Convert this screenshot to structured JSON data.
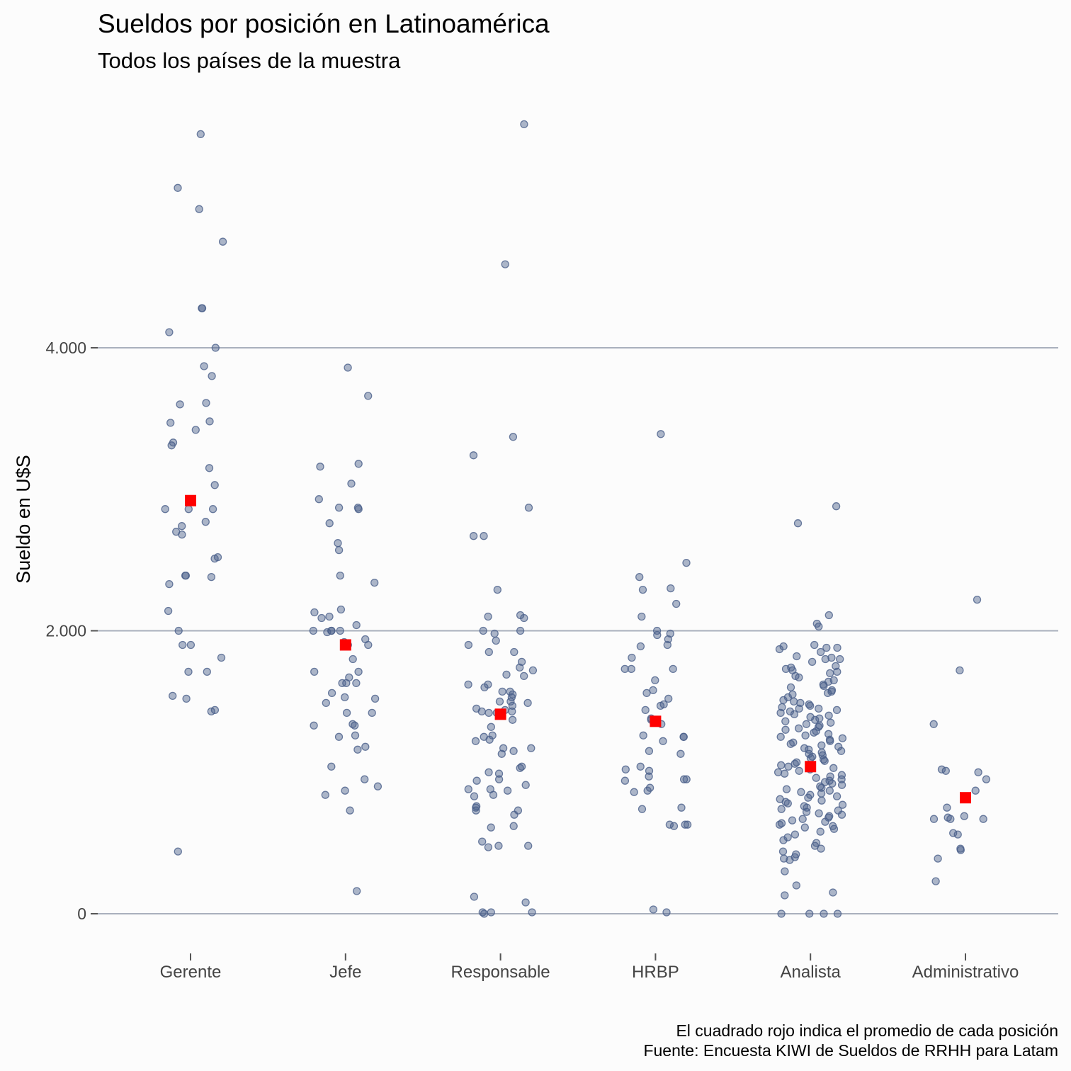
{
  "chart_data": {
    "type": "scatter",
    "title": "Sueldos por posición en Latinoamérica",
    "subtitle": "Todos los países de la muestra",
    "ylabel": "Sueldo en U$S",
    "xlabel": "",
    "ylim": [
      -200,
      5600
    ],
    "yticks": [
      0,
      2000,
      4000
    ],
    "ytick_labels": [
      "0",
      "2.000",
      "4.000"
    ],
    "grid": true,
    "categories": [
      "Gerente",
      "Jefe",
      "Responsable",
      "HRBP",
      "Analista",
      "Administrativo"
    ],
    "point_color": "#4a5f8a",
    "mean_color": "#ff0000",
    "caption": [
      "El cuadrado rojo indica el promedio de cada posición",
      "Fuente: Encuesta KIWI de Sueldos de RRHH para Latam"
    ],
    "means": [
      2920,
      1900,
      1410,
      1360,
      1040,
      820
    ],
    "series": [
      {
        "category": "Gerente",
        "values": [
          5510,
          5130,
          4980,
          4750,
          4280,
          4280,
          4110,
          4000,
          3870,
          3800,
          3610,
          3600,
          3480,
          3470,
          3420,
          3330,
          3310,
          3150,
          3030,
          2860,
          2860,
          2860,
          2770,
          2740,
          2700,
          2680,
          2520,
          2510,
          2390,
          2390,
          2380,
          2330,
          2140,
          2000,
          1900,
          1900,
          1810,
          1710,
          1710,
          1540,
          1520,
          1440,
          1430,
          440
        ]
      },
      {
        "category": "Jefe",
        "values": [
          3860,
          3660,
          3180,
          3160,
          3040,
          2930,
          2870,
          2870,
          2860,
          2760,
          2620,
          2570,
          2390,
          2340,
          2150,
          2130,
          2100,
          2090,
          2040,
          2000,
          2000,
          2000,
          2000,
          1990,
          1940,
          1920,
          1900,
          1900,
          1800,
          1710,
          1710,
          1670,
          1630,
          1630,
          1630,
          1560,
          1530,
          1520,
          1490,
          1420,
          1420,
          1340,
          1330,
          1330,
          1260,
          1250,
          1180,
          1160,
          1040,
          950,
          900,
          870,
          840,
          730,
          160
        ]
      },
      {
        "category": "Responsable",
        "values": [
          5580,
          4590,
          3370,
          3240,
          2870,
          2670,
          2670,
          2290,
          2110,
          2100,
          2090,
          2000,
          2000,
          1980,
          1930,
          1900,
          1850,
          1850,
          1780,
          1740,
          1720,
          1690,
          1680,
          1620,
          1620,
          1600,
          1570,
          1570,
          1550,
          1530,
          1500,
          1500,
          1490,
          1470,
          1450,
          1440,
          1430,
          1430,
          1420,
          1420,
          1370,
          1320,
          1260,
          1250,
          1230,
          1220,
          1170,
          1170,
          1150,
          1130,
          1040,
          1030,
          1000,
          990,
          950,
          940,
          910,
          880,
          880,
          870,
          840,
          830,
          760,
          750,
          730,
          730,
          700,
          620,
          610,
          510,
          480,
          480,
          470,
          120,
          80,
          10,
          10,
          10,
          0
        ]
      },
      {
        "category": "HRBP",
        "values": [
          3390,
          2480,
          2380,
          2300,
          2290,
          2190,
          2100,
          2000,
          1980,
          1970,
          1940,
          1900,
          1890,
          1810,
          1730,
          1730,
          1730,
          1650,
          1580,
          1560,
          1520,
          1480,
          1470,
          1440,
          1380,
          1370,
          1340,
          1260,
          1250,
          1250,
          1220,
          1150,
          1130,
          1040,
          1020,
          1010,
          970,
          950,
          950,
          940,
          890,
          870,
          860,
          750,
          740,
          630,
          630,
          630,
          620,
          30,
          10
        ]
      },
      {
        "category": "Analista",
        "values": [
          2880,
          2760,
          2110,
          2050,
          2030,
          1900,
          1890,
          1880,
          1880,
          1870,
          1850,
          1820,
          1810,
          1800,
          1800,
          1780,
          1750,
          1740,
          1730,
          1720,
          1710,
          1700,
          1680,
          1670,
          1650,
          1640,
          1620,
          1610,
          1600,
          1580,
          1570,
          1560,
          1550,
          1530,
          1510,
          1500,
          1490,
          1480,
          1470,
          1460,
          1450,
          1450,
          1440,
          1430,
          1420,
          1410,
          1400,
          1390,
          1380,
          1370,
          1360,
          1350,
          1340,
          1330,
          1320,
          1310,
          1300,
          1290,
          1280,
          1270,
          1260,
          1250,
          1240,
          1230,
          1220,
          1210,
          1200,
          1190,
          1180,
          1170,
          1160,
          1150,
          1140,
          1130,
          1120,
          1110,
          1100,
          1090,
          1080,
          1070,
          1060,
          1050,
          1040,
          1030,
          1020,
          1010,
          1000,
          990,
          980,
          970,
          960,
          950,
          940,
          930,
          920,
          910,
          900,
          890,
          880,
          870,
          860,
          850,
          840,
          830,
          820,
          810,
          800,
          790,
          780,
          770,
          760,
          750,
          740,
          730,
          720,
          710,
          700,
          690,
          680,
          670,
          660,
          650,
          640,
          630,
          620,
          610,
          600,
          580,
          560,
          540,
          520,
          500,
          480,
          460,
          440,
          420,
          400,
          390,
          380,
          300,
          200,
          150,
          130,
          0,
          0,
          0,
          0
        ]
      },
      {
        "category": "Administrativo",
        "values": [
          2220,
          1720,
          1340,
          1020,
          1010,
          1000,
          950,
          870,
          750,
          690,
          680,
          670,
          670,
          670,
          570,
          560,
          460,
          450,
          390,
          230
        ]
      }
    ]
  }
}
